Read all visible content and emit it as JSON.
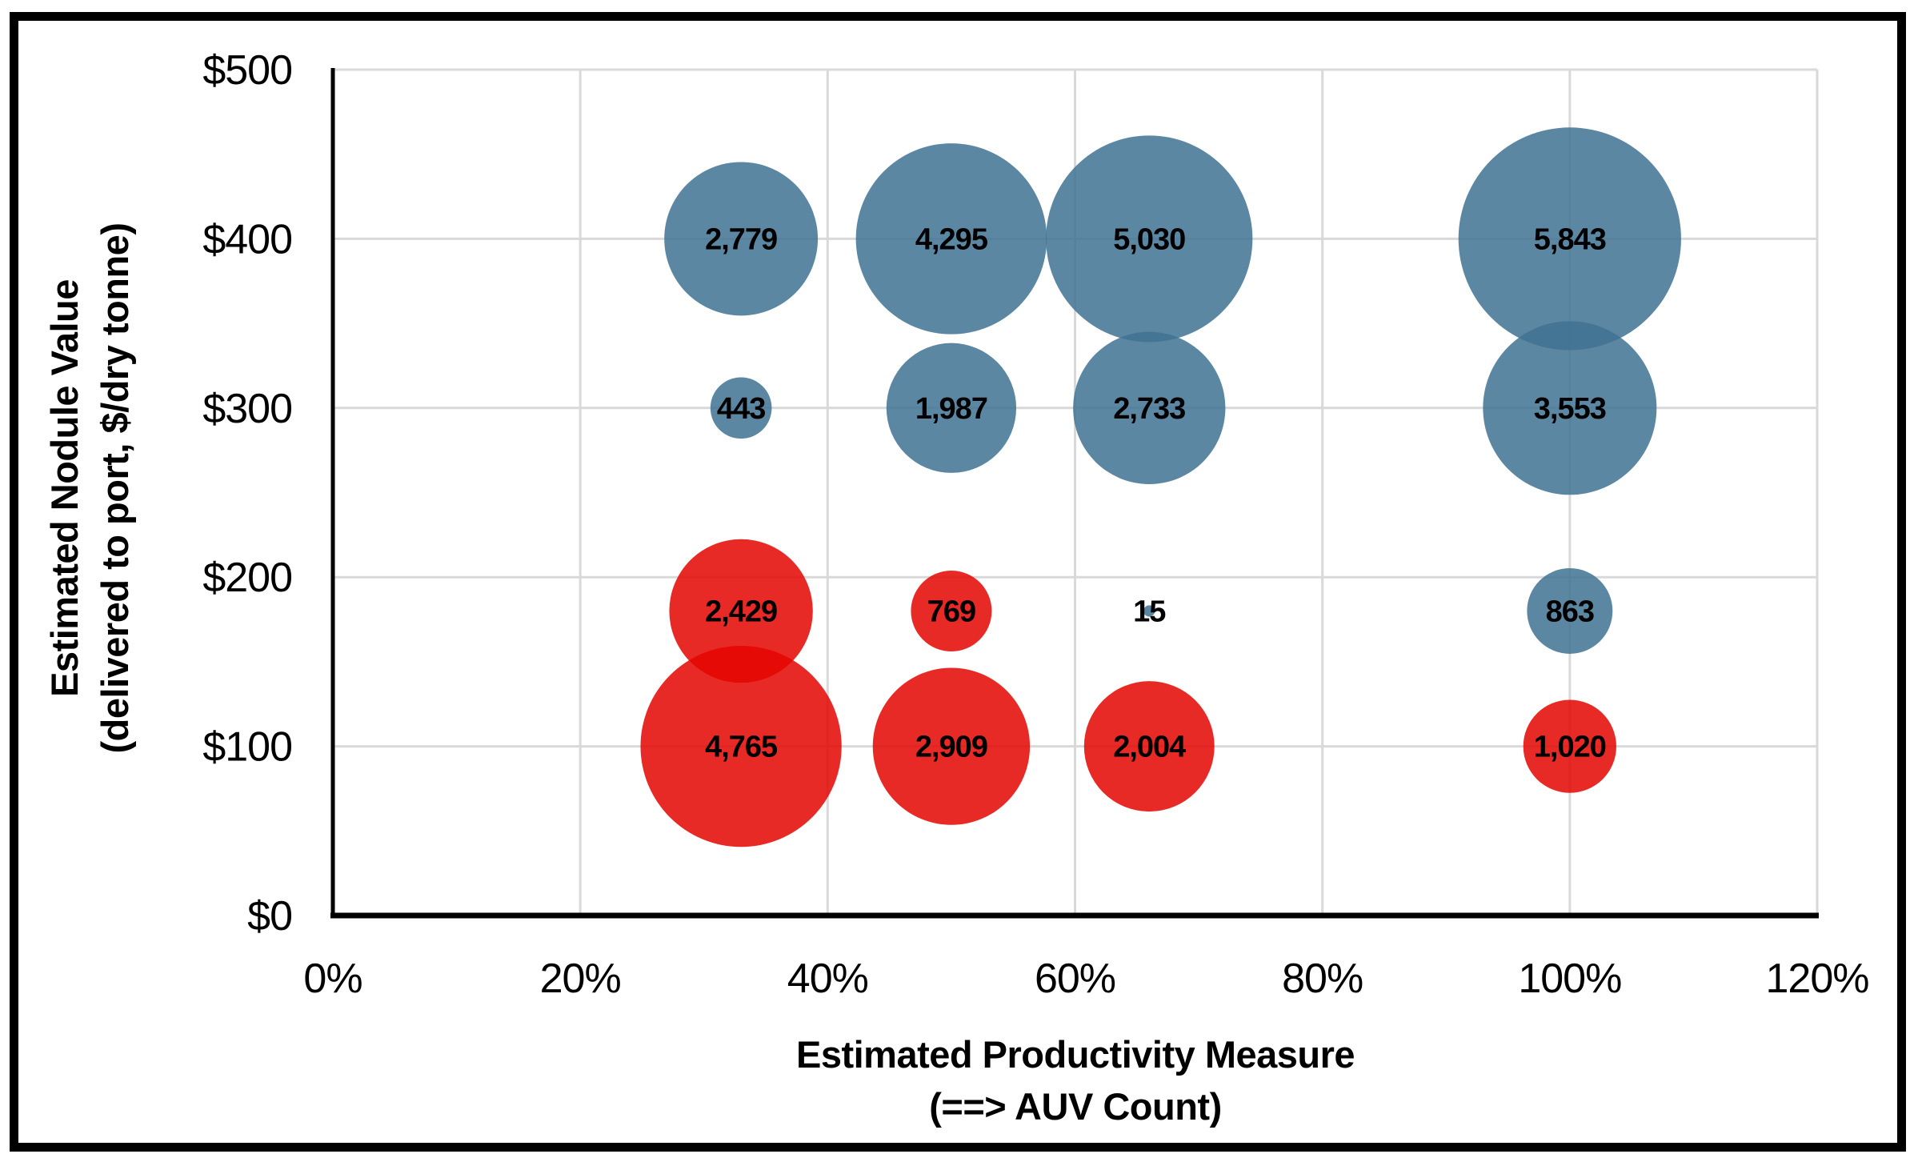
{
  "figure": {
    "background_color": "#ffffff",
    "frame_color": "#000000"
  },
  "chart_data": {
    "type": "scatter",
    "subtype": "bubble",
    "title": "",
    "x_axis": {
      "title_line1": "Estimated Productivity Measure",
      "title_line2": "(==> AUV Count)",
      "tick_labels": [
        "0%",
        "20%",
        "40%",
        "60%",
        "80%",
        "100%",
        "120%"
      ],
      "tick_values": [
        0,
        20,
        40,
        60,
        80,
        100,
        120
      ],
      "range": [
        0,
        120
      ],
      "unit": "%"
    },
    "y_axis": {
      "title_line1": "Estimated Nodule Value",
      "title_line2": "(delivered to port, $/dry tonne)",
      "tick_labels": [
        "$0",
        "$100",
        "$200",
        "$300",
        "$400",
        "$500"
      ],
      "tick_values": [
        0,
        100,
        200,
        300,
        400,
        500
      ],
      "range": [
        0,
        500
      ],
      "unit": "$/dry tonne"
    },
    "grid": "on",
    "gridline_color": "#D9D9D9",
    "axis_line_color": "#000000",
    "data_label_color": "#000000",
    "bubble_sizing": "area proportional to value",
    "series": [
      {
        "name": "blue-bubbles",
        "color": "#407292",
        "fill_opacity": 0.85,
        "points": [
          {
            "x": 33,
            "y": 400,
            "value": 2779,
            "label": "2,779"
          },
          {
            "x": 50,
            "y": 400,
            "value": 4295,
            "label": "4,295"
          },
          {
            "x": 66,
            "y": 400,
            "value": 5030,
            "label": "5,030"
          },
          {
            "x": 100,
            "y": 400,
            "value": 5843,
            "label": "5,843"
          },
          {
            "x": 33,
            "y": 300,
            "value": 443,
            "label": "443"
          },
          {
            "x": 50,
            "y": 300,
            "value": 1987,
            "label": "1,987"
          },
          {
            "x": 66,
            "y": 300,
            "value": 2733,
            "label": "2,733"
          },
          {
            "x": 100,
            "y": 300,
            "value": 3553,
            "label": "3,553"
          },
          {
            "x": 66,
            "y": 180,
            "value": 15,
            "label": "15"
          },
          {
            "x": 100,
            "y": 180,
            "value": 863,
            "label": "863"
          }
        ]
      },
      {
        "name": "red-bubbles",
        "color": "#E40500",
        "fill_opacity": 0.85,
        "points": [
          {
            "x": 33,
            "y": 180,
            "value": 2429,
            "label": "2,429"
          },
          {
            "x": 50,
            "y": 180,
            "value": 769,
            "label": "769"
          },
          {
            "x": 33,
            "y": 100,
            "value": 4765,
            "label": "4,765"
          },
          {
            "x": 50,
            "y": 100,
            "value": 2909,
            "label": "2,909"
          },
          {
            "x": 66,
            "y": 100,
            "value": 2004,
            "label": "2,004"
          },
          {
            "x": 100,
            "y": 100,
            "value": 1020,
            "label": "1,020"
          }
        ]
      }
    ]
  }
}
